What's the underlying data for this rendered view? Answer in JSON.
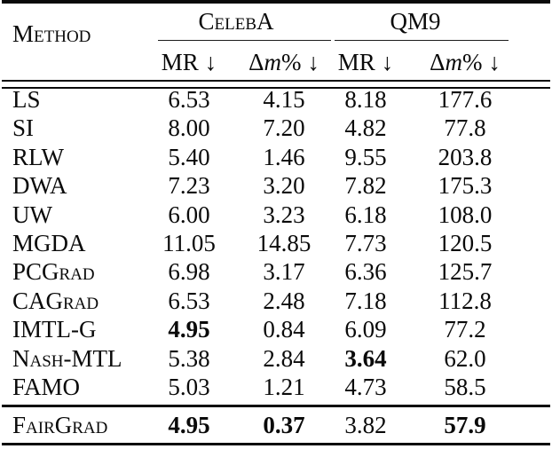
{
  "table": {
    "title_column": "Method",
    "groups": [
      {
        "label": "CelebA"
      },
      {
        "label": "QM9"
      }
    ],
    "metric_headers": [
      {
        "name": "MR",
        "arrow": "↓"
      },
      {
        "delta": "Δ",
        "var": "m",
        "pct": "%",
        "arrow": "↓"
      },
      {
        "name": "MR",
        "arrow": "↓"
      },
      {
        "delta": "Δ",
        "var": "m",
        "pct": "%",
        "arrow": "↓"
      }
    ],
    "rows": [
      {
        "method": "LS",
        "values": [
          "6.53",
          "4.15",
          "8.18",
          "177.6"
        ]
      },
      {
        "method": "SI",
        "values": [
          "8.00",
          "7.20",
          "4.82",
          "77.8"
        ]
      },
      {
        "method": "RLW",
        "values": [
          "5.40",
          "1.46",
          "9.55",
          "203.8"
        ]
      },
      {
        "method": "DWA",
        "values": [
          "7.23",
          "3.20",
          "7.82",
          "175.3"
        ]
      },
      {
        "method": "UW",
        "values": [
          "6.00",
          "3.23",
          "6.18",
          "108.0"
        ]
      },
      {
        "method": "MGDA",
        "values": [
          "11.05",
          "14.85",
          "7.73",
          "120.5"
        ]
      },
      {
        "method": "PCGrad",
        "values": [
          "6.98",
          "3.17",
          "6.36",
          "125.7"
        ]
      },
      {
        "method": "CAGrad",
        "values": [
          "6.53",
          "2.48",
          "7.18",
          "112.8"
        ]
      },
      {
        "method": "IMTL-G",
        "values": [
          "4.95",
          "0.84",
          "6.09",
          "77.2"
        ],
        "bold": [
          1,
          0,
          0,
          0
        ]
      },
      {
        "method": "Nash-MTL",
        "values": [
          "5.38",
          "2.84",
          "3.64",
          "62.0"
        ],
        "bold": [
          0,
          0,
          1,
          0
        ]
      },
      {
        "method": "FAMO",
        "values": [
          "5.03",
          "1.21",
          "4.73",
          "58.5"
        ]
      }
    ],
    "highlight_row": {
      "method": "FairGrad",
      "values": [
        "4.95",
        "0.37",
        "3.82",
        "57.9"
      ],
      "bold": [
        1,
        1,
        0,
        1
      ]
    }
  }
}
